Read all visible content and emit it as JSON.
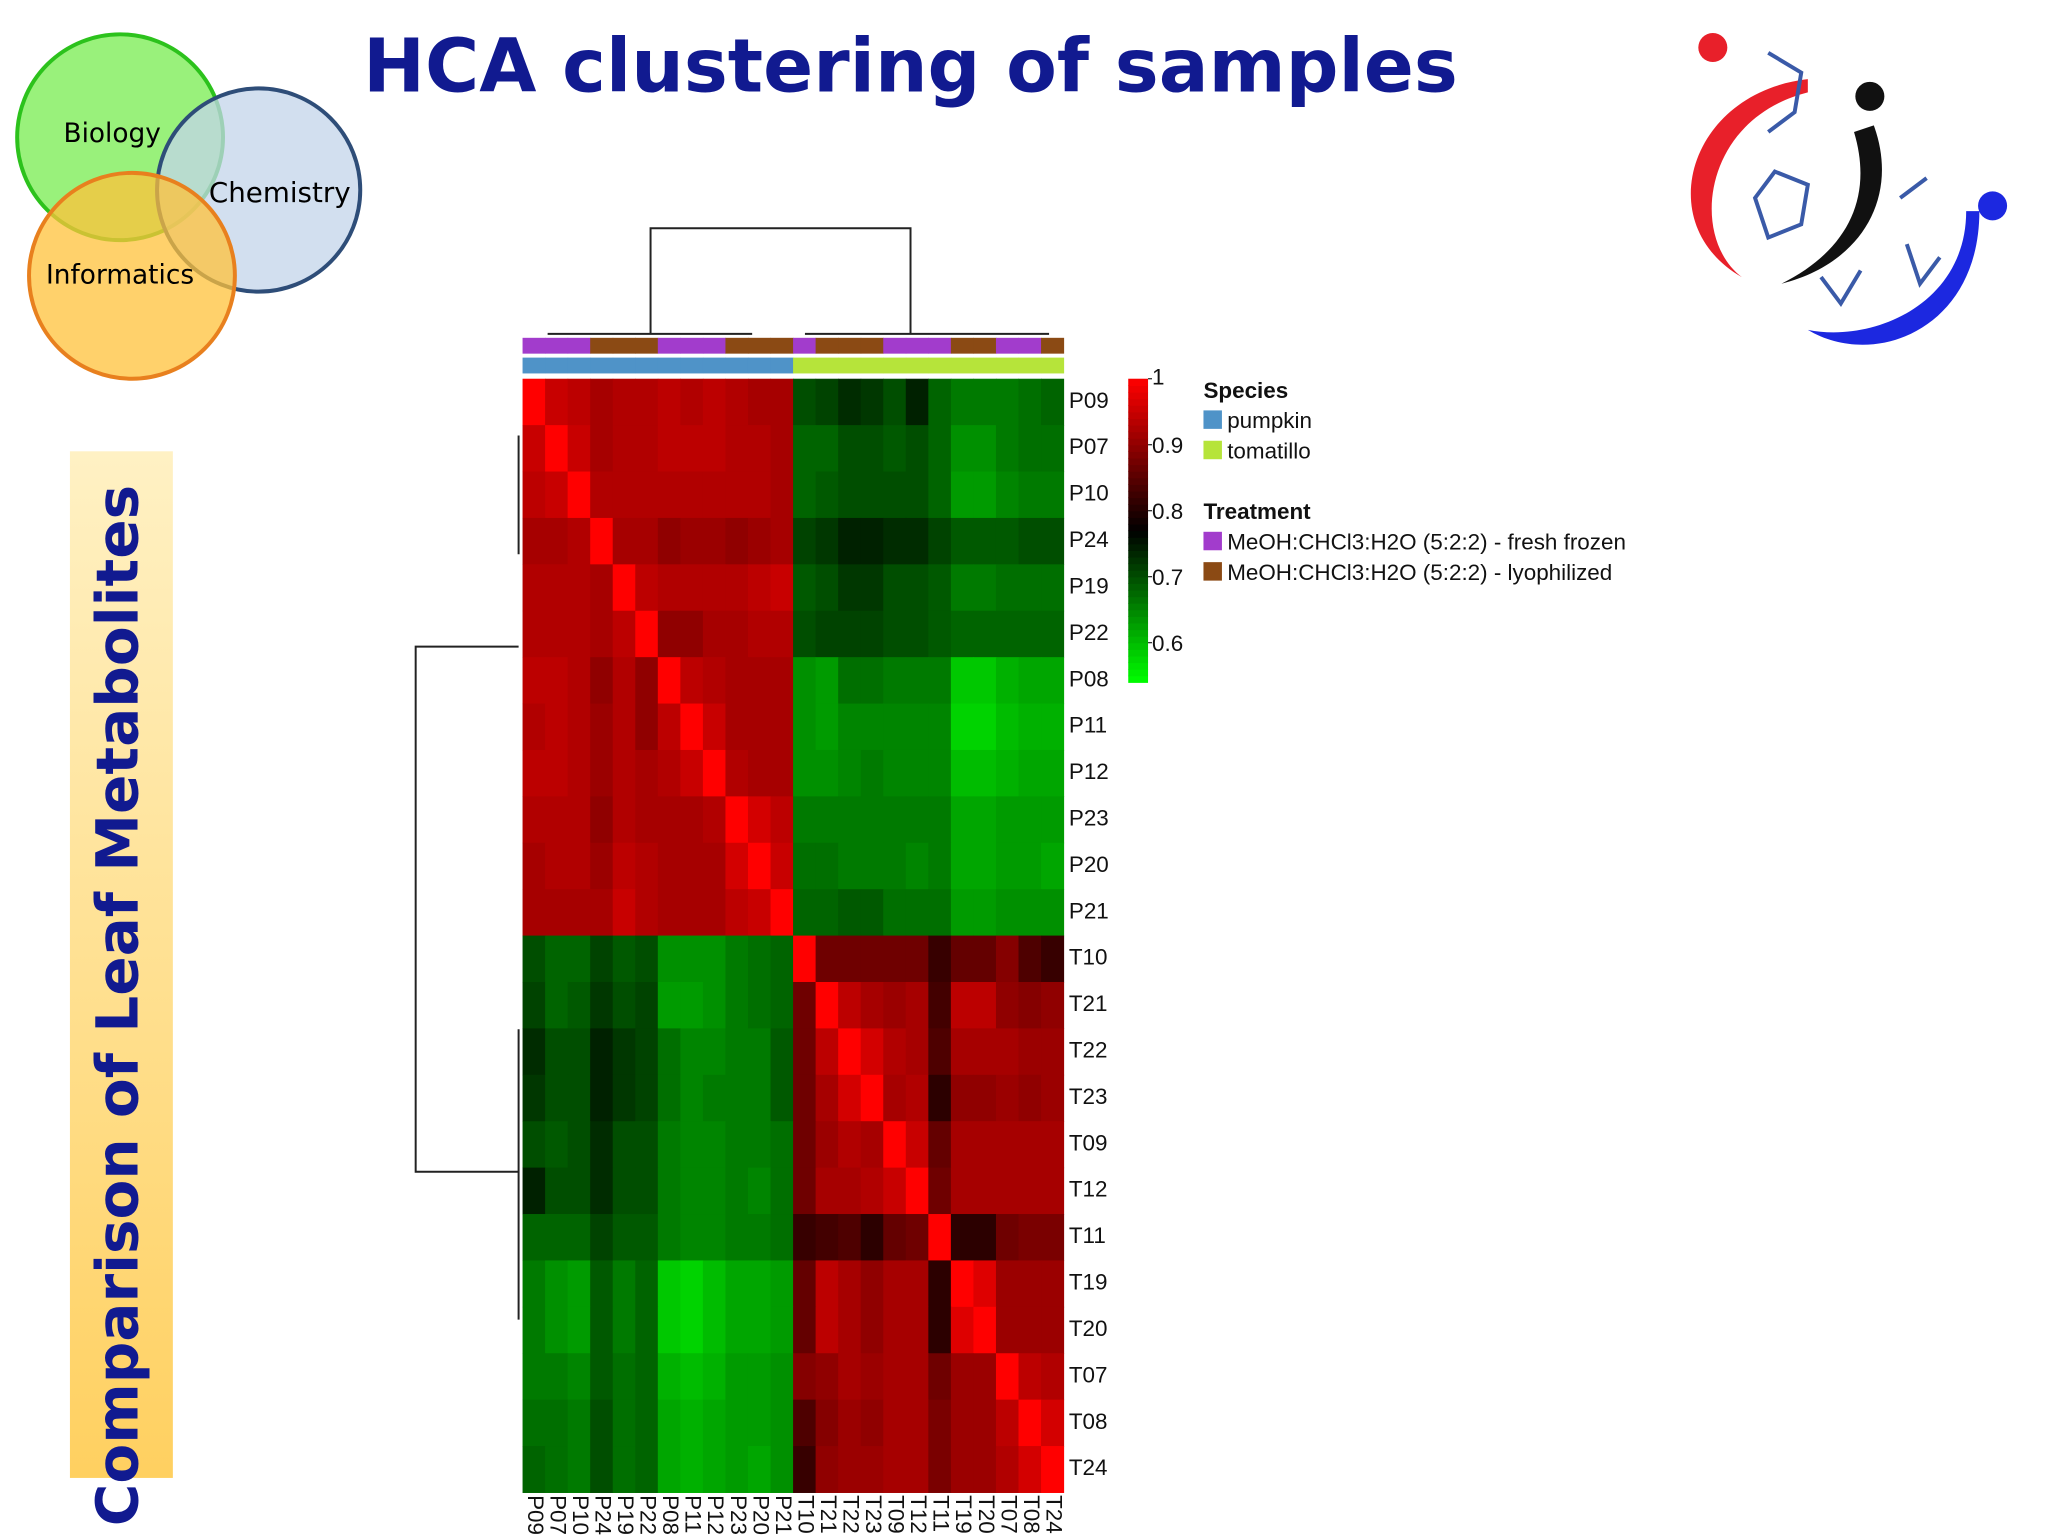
{
  "slide": {
    "title": "HCA clustering of samples",
    "venn": [
      "Biology",
      "Chemistry",
      "Informatics"
    ],
    "side_title": "Comparison of Leaf Metabolites"
  },
  "chart_data": {
    "type": "heatmap",
    "labels": [
      "P09",
      "P07",
      "P10",
      "P24",
      "P19",
      "P22",
      "P08",
      "P11",
      "P12",
      "P23",
      "P20",
      "P21",
      "T10",
      "T21",
      "T22",
      "T23",
      "T09",
      "T12",
      "T11",
      "T19",
      "T20",
      "T07",
      "T08",
      "T24"
    ],
    "matrix": [
      [
        1,
        0.95,
        0.94,
        0.92,
        0.93,
        0.93,
        0.94,
        0.93,
        0.94,
        0.93,
        0.92,
        0.92,
        0.7,
        0.71,
        0.73,
        0.72,
        0.7,
        0.74,
        0.68,
        0.66,
        0.66,
        0.66,
        0.67,
        0.68
      ],
      [
        0.95,
        1,
        0.95,
        0.92,
        0.93,
        0.93,
        0.94,
        0.94,
        0.94,
        0.93,
        0.93,
        0.92,
        0.68,
        0.68,
        0.7,
        0.7,
        0.69,
        0.7,
        0.68,
        0.64,
        0.64,
        0.66,
        0.67,
        0.67
      ],
      [
        0.94,
        0.95,
        1,
        0.93,
        0.93,
        0.93,
        0.93,
        0.93,
        0.93,
        0.93,
        0.93,
        0.92,
        0.68,
        0.69,
        0.7,
        0.7,
        0.7,
        0.7,
        0.68,
        0.63,
        0.63,
        0.65,
        0.66,
        0.66
      ],
      [
        0.92,
        0.92,
        0.93,
        1,
        0.92,
        0.92,
        0.9,
        0.91,
        0.91,
        0.9,
        0.91,
        0.92,
        0.71,
        0.72,
        0.74,
        0.74,
        0.73,
        0.73,
        0.71,
        0.69,
        0.69,
        0.69,
        0.7,
        0.7
      ],
      [
        0.93,
        0.93,
        0.93,
        0.92,
        1,
        0.94,
        0.93,
        0.93,
        0.93,
        0.93,
        0.94,
        0.95,
        0.69,
        0.7,
        0.72,
        0.72,
        0.7,
        0.7,
        0.69,
        0.66,
        0.66,
        0.67,
        0.67,
        0.67
      ],
      [
        0.93,
        0.93,
        0.93,
        0.92,
        0.94,
        1,
        0.9,
        0.9,
        0.92,
        0.92,
        0.93,
        0.93,
        0.7,
        0.71,
        0.71,
        0.71,
        0.7,
        0.7,
        0.69,
        0.68,
        0.68,
        0.68,
        0.68,
        0.68
      ],
      [
        0.94,
        0.94,
        0.93,
        0.9,
        0.93,
        0.9,
        1,
        0.94,
        0.93,
        0.92,
        0.92,
        0.92,
        0.64,
        0.63,
        0.67,
        0.67,
        0.66,
        0.66,
        0.66,
        0.59,
        0.59,
        0.61,
        0.62,
        0.62
      ],
      [
        0.93,
        0.94,
        0.93,
        0.91,
        0.93,
        0.9,
        0.94,
        1,
        0.95,
        0.92,
        0.92,
        0.92,
        0.64,
        0.63,
        0.65,
        0.65,
        0.65,
        0.65,
        0.65,
        0.58,
        0.58,
        0.6,
        0.61,
        0.61
      ],
      [
        0.94,
        0.94,
        0.93,
        0.91,
        0.93,
        0.92,
        0.93,
        0.95,
        1,
        0.93,
        0.92,
        0.92,
        0.64,
        0.64,
        0.65,
        0.66,
        0.65,
        0.65,
        0.65,
        0.6,
        0.6,
        0.61,
        0.62,
        0.62
      ],
      [
        0.93,
        0.93,
        0.93,
        0.9,
        0.93,
        0.92,
        0.92,
        0.92,
        0.93,
        1,
        0.96,
        0.94,
        0.66,
        0.66,
        0.66,
        0.66,
        0.66,
        0.66,
        0.66,
        0.62,
        0.62,
        0.63,
        0.63,
        0.63
      ],
      [
        0.92,
        0.93,
        0.93,
        0.91,
        0.94,
        0.93,
        0.92,
        0.92,
        0.92,
        0.96,
        1,
        0.95,
        0.67,
        0.67,
        0.66,
        0.66,
        0.66,
        0.65,
        0.66,
        0.62,
        0.62,
        0.63,
        0.63,
        0.62
      ],
      [
        0.92,
        0.92,
        0.92,
        0.92,
        0.95,
        0.93,
        0.92,
        0.92,
        0.92,
        0.94,
        0.95,
        1,
        0.68,
        0.68,
        0.69,
        0.69,
        0.67,
        0.67,
        0.67,
        0.63,
        0.63,
        0.64,
        0.64,
        0.64
      ],
      [
        0.7,
        0.68,
        0.68,
        0.71,
        0.69,
        0.7,
        0.64,
        0.64,
        0.64,
        0.66,
        0.67,
        0.68,
        1,
        0.87,
        0.87,
        0.87,
        0.87,
        0.87,
        0.82,
        0.86,
        0.86,
        0.89,
        0.84,
        0.82
      ],
      [
        0.71,
        0.68,
        0.69,
        0.72,
        0.7,
        0.71,
        0.63,
        0.63,
        0.64,
        0.66,
        0.67,
        0.68,
        0.87,
        1,
        0.94,
        0.92,
        0.91,
        0.92,
        0.83,
        0.94,
        0.94,
        0.9,
        0.89,
        0.9
      ],
      [
        0.73,
        0.7,
        0.7,
        0.74,
        0.72,
        0.71,
        0.67,
        0.65,
        0.65,
        0.66,
        0.66,
        0.69,
        0.87,
        0.94,
        1,
        0.96,
        0.93,
        0.92,
        0.84,
        0.92,
        0.92,
        0.92,
        0.91,
        0.91
      ],
      [
        0.72,
        0.7,
        0.7,
        0.74,
        0.72,
        0.71,
        0.67,
        0.65,
        0.66,
        0.66,
        0.66,
        0.69,
        0.87,
        0.92,
        0.96,
        1,
        0.92,
        0.93,
        0.81,
        0.9,
        0.9,
        0.91,
        0.9,
        0.91
      ],
      [
        0.7,
        0.69,
        0.7,
        0.73,
        0.7,
        0.7,
        0.66,
        0.65,
        0.65,
        0.66,
        0.66,
        0.67,
        0.87,
        0.91,
        0.93,
        0.92,
        1,
        0.95,
        0.86,
        0.92,
        0.92,
        0.92,
        0.92,
        0.92
      ],
      [
        0.74,
        0.7,
        0.7,
        0.73,
        0.7,
        0.7,
        0.66,
        0.65,
        0.65,
        0.66,
        0.65,
        0.67,
        0.87,
        0.92,
        0.92,
        0.93,
        0.95,
        1,
        0.87,
        0.92,
        0.92,
        0.92,
        0.92,
        0.92
      ],
      [
        0.68,
        0.68,
        0.68,
        0.71,
        0.69,
        0.69,
        0.66,
        0.65,
        0.65,
        0.66,
        0.66,
        0.67,
        0.82,
        0.83,
        0.84,
        0.81,
        0.86,
        0.87,
        1,
        0.81,
        0.81,
        0.87,
        0.88,
        0.88
      ],
      [
        0.66,
        0.64,
        0.63,
        0.69,
        0.66,
        0.68,
        0.59,
        0.58,
        0.6,
        0.62,
        0.62,
        0.63,
        0.86,
        0.94,
        0.92,
        0.9,
        0.92,
        0.92,
        0.81,
        1,
        0.97,
        0.91,
        0.91,
        0.91
      ],
      [
        0.66,
        0.64,
        0.63,
        0.69,
        0.66,
        0.68,
        0.59,
        0.58,
        0.6,
        0.62,
        0.62,
        0.63,
        0.86,
        0.94,
        0.92,
        0.9,
        0.92,
        0.92,
        0.81,
        0.97,
        1,
        0.91,
        0.91,
        0.91
      ],
      [
        0.66,
        0.66,
        0.65,
        0.69,
        0.67,
        0.68,
        0.61,
        0.6,
        0.61,
        0.63,
        0.63,
        0.64,
        0.89,
        0.9,
        0.92,
        0.91,
        0.92,
        0.92,
        0.87,
        0.91,
        0.91,
        1,
        0.94,
        0.93
      ],
      [
        0.67,
        0.67,
        0.66,
        0.7,
        0.67,
        0.68,
        0.62,
        0.61,
        0.62,
        0.63,
        0.63,
        0.64,
        0.84,
        0.89,
        0.91,
        0.9,
        0.92,
        0.92,
        0.88,
        0.91,
        0.91,
        0.94,
        1,
        0.96
      ],
      [
        0.68,
        0.67,
        0.66,
        0.7,
        0.67,
        0.68,
        0.62,
        0.61,
        0.62,
        0.63,
        0.62,
        0.64,
        0.82,
        0.9,
        0.91,
        0.91,
        0.92,
        0.92,
        0.88,
        0.91,
        0.91,
        0.93,
        0.96,
        1
      ]
    ],
    "clim": [
      0.54,
      1
    ],
    "colorbar_ticks": [
      1,
      0.9,
      0.8,
      0.7,
      0.6
    ],
    "colors": [
      "#00ff00",
      "#000000",
      "#ff0000"
    ],
    "annotations": [
      {
        "title": "Species",
        "names": [
          "pumpkin",
          "tomatillo"
        ],
        "colors": [
          "#4f93c8",
          "#b6e43a"
        ],
        "groups": [
          0,
          0,
          0,
          0,
          0,
          0,
          0,
          0,
          0,
          0,
          0,
          0,
          1,
          1,
          1,
          1,
          1,
          1,
          1,
          1,
          1,
          1,
          1,
          1
        ]
      },
      {
        "title": "Treatment",
        "names": [
          "MeOH:CHCl3:H2O (5:2:2) - fresh frozen",
          "MeOH:CHCl3:H2O (5:2:2) - lyophilized"
        ],
        "colors": [
          "#a23ccc",
          "#8b4a14"
        ],
        "groups": [
          0,
          0,
          0,
          1,
          1,
          1,
          0,
          0,
          0,
          1,
          1,
          1,
          0,
          1,
          1,
          1,
          0,
          0,
          0,
          1,
          1,
          0,
          0,
          1
        ]
      }
    ]
  }
}
